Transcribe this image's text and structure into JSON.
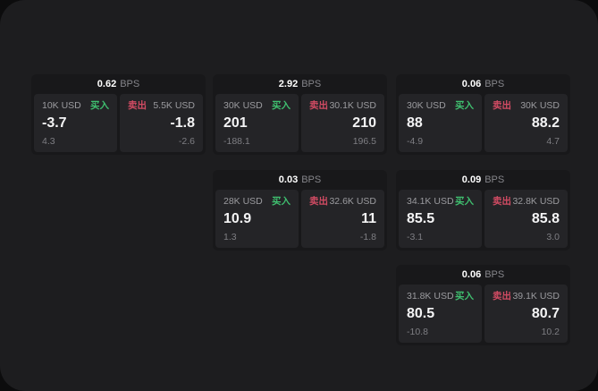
{
  "labels": {
    "bps": "BPS",
    "buy": "买入",
    "sell": "卖出"
  },
  "colors": {
    "background": "#0c0c0d",
    "surface": "#1d1d1f",
    "card": "#18181a",
    "panel": "#242427",
    "buy_green": "#3fbf6f",
    "sell_red": "#d14b63"
  },
  "cards": [
    {
      "bps": "0.62",
      "buy": {
        "size": "10K USD",
        "price": "-3.7",
        "delta": "4.3"
      },
      "sell": {
        "size": "5.5K USD",
        "price": "-1.8",
        "delta": "-2.6"
      }
    },
    {
      "bps": "2.92",
      "buy": {
        "size": "30K USD",
        "price": "201",
        "delta": "-188.1"
      },
      "sell": {
        "size": "30.1K USD",
        "price": "210",
        "delta": "196.5"
      }
    },
    {
      "bps": "0.06",
      "buy": {
        "size": "30K USD",
        "price": "88",
        "delta": "-4.9"
      },
      "sell": {
        "size": "30K USD",
        "price": "88.2",
        "delta": "4.7"
      }
    },
    {
      "bps": "0.03",
      "buy": {
        "size": "28K USD",
        "price": "10.9",
        "delta": "1.3"
      },
      "sell": {
        "size": "32.6K USD",
        "price": "11",
        "delta": "-1.8"
      }
    },
    {
      "bps": "0.09",
      "buy": {
        "size": "34.1K USD",
        "price": "85.5",
        "delta": "-3.1"
      },
      "sell": {
        "size": "32.8K USD",
        "price": "85.8",
        "delta": "3.0"
      }
    },
    {
      "bps": "0.06",
      "buy": {
        "size": "31.8K USD",
        "price": "80.5",
        "delta": "-10.8"
      },
      "sell": {
        "size": "39.1K USD",
        "price": "80.7",
        "delta": "10.2"
      }
    }
  ]
}
